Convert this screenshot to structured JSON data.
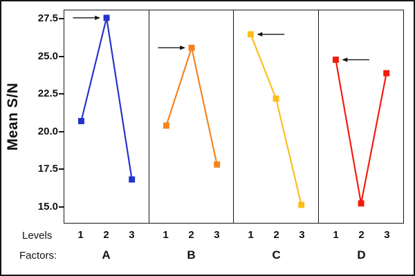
{
  "figure": {
    "levels_label": "Levels",
    "factors_label": "Factors:"
  },
  "chart_data": {
    "type": "line",
    "title": "",
    "ylabel": "Mean S/N",
    "ylim": [
      13.9,
      28.1
    ],
    "yticks": [
      15.0,
      17.5,
      20.0,
      22.5,
      25.0,
      27.5
    ],
    "levels": [
      "1",
      "2",
      "3"
    ],
    "grid": false,
    "legend_position": "none",
    "series": [
      {
        "factor": "A",
        "color": "#2433cc",
        "values": [
          20.7,
          27.6,
          16.8
        ],
        "arrow": {
          "level": 2,
          "from": "left"
        }
      },
      {
        "factor": "B",
        "color": "#f5831f",
        "values": [
          20.4,
          25.6,
          17.8
        ],
        "arrow": {
          "level": 2,
          "from": "left"
        }
      },
      {
        "factor": "C",
        "color": "#fcbe1c",
        "values": [
          26.5,
          22.2,
          15.1
        ],
        "arrow": {
          "level": 1,
          "from": "right"
        }
      },
      {
        "factor": "D",
        "color": "#f31b0c",
        "values": [
          24.8,
          15.2,
          23.9
        ],
        "arrow": {
          "level": 1,
          "from": "right"
        }
      }
    ]
  }
}
